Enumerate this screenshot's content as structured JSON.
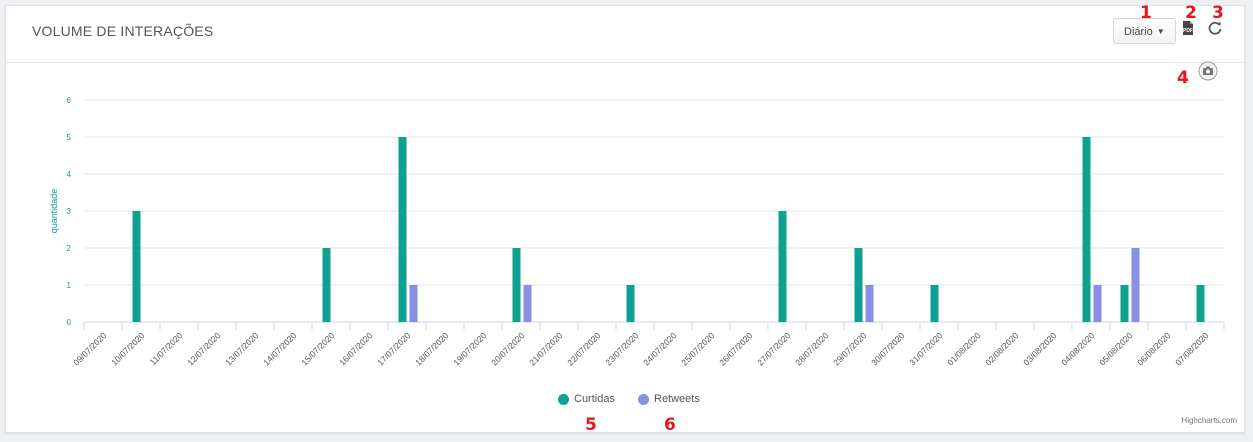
{
  "header": {
    "title": "VOLUME DE INTERAÇÕES",
    "period_label": "Diário",
    "pdf_icon": "pdf-export-icon",
    "refresh_icon": "refresh-icon",
    "camera_icon": "camera-icon"
  },
  "annotations": [
    "1",
    "2",
    "3",
    "4",
    "5",
    "6"
  ],
  "credit": "Highcharts.com",
  "colors": {
    "curtidas": "#0fa190",
    "retweets": "#8a8fe6",
    "axis_label": "#0fa190"
  },
  "chart_data": {
    "type": "bar",
    "title": "",
    "xlabel": "",
    "ylabel": "quantidade",
    "ylim": [
      0,
      6
    ],
    "yticks": [
      0,
      1,
      2,
      3,
      4,
      5,
      6
    ],
    "grid": true,
    "legend": "bottom-center",
    "categories": [
      "09/07/2020",
      "10/07/2020",
      "11/07/2020",
      "12/07/2020",
      "13/07/2020",
      "14/07/2020",
      "15/07/2020",
      "16/07/2020",
      "17/07/2020",
      "18/07/2020",
      "19/07/2020",
      "20/07/2020",
      "21/07/2020",
      "22/07/2020",
      "23/07/2020",
      "24/07/2020",
      "25/07/2020",
      "26/07/2020",
      "27/07/2020",
      "28/07/2020",
      "29/07/2020",
      "30/07/2020",
      "31/07/2020",
      "01/08/2020",
      "02/08/2020",
      "03/08/2020",
      "04/08/2020",
      "05/08/2020",
      "06/08/2020",
      "07/08/2020"
    ],
    "series": [
      {
        "name": "Curtidas",
        "values": [
          0,
          3,
          0,
          0,
          0,
          0,
          2,
          0,
          5,
          0,
          0,
          2,
          0,
          0,
          1,
          0,
          0,
          0,
          3,
          0,
          2,
          0,
          1,
          0,
          0,
          0,
          5,
          1,
          0,
          1
        ]
      },
      {
        "name": "Retweets",
        "values": [
          0,
          0,
          0,
          0,
          0,
          0,
          0,
          0,
          1,
          0,
          0,
          1,
          0,
          0,
          0,
          0,
          0,
          0,
          0,
          0,
          1,
          0,
          0,
          0,
          0,
          0,
          1,
          2,
          0,
          0
        ]
      }
    ]
  }
}
